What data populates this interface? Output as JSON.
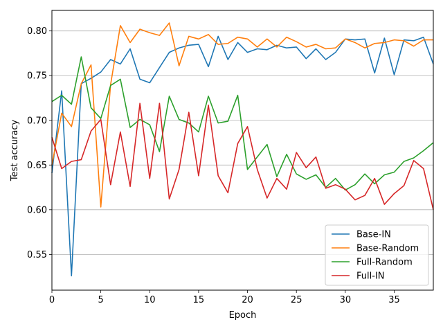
{
  "chart_data": {
    "type": "line",
    "title": "",
    "xlabel": "Epoch",
    "ylabel": "Test accuracy",
    "xlim": [
      0,
      39
    ],
    "ylim": [
      0.51,
      0.823
    ],
    "xticks": [
      0,
      5,
      10,
      15,
      20,
      25,
      30,
      35
    ],
    "yticks": [
      0.55,
      0.6,
      0.65,
      0.7,
      0.75,
      0.8
    ],
    "xtick_labels": [
      "0",
      "5",
      "10",
      "15",
      "20",
      "25",
      "30",
      "35"
    ],
    "ytick_labels": [
      "0.55",
      "0.60",
      "0.65",
      "0.70",
      "0.75",
      "0.80"
    ],
    "grid": "horizontal",
    "legend_position": "lower-right",
    "x": [
      0,
      1,
      2,
      3,
      4,
      5,
      6,
      7,
      8,
      9,
      10,
      11,
      12,
      13,
      14,
      15,
      16,
      17,
      18,
      19,
      20,
      21,
      22,
      23,
      24,
      25,
      26,
      27,
      28,
      29,
      30,
      31,
      32,
      33,
      34,
      35,
      36,
      37,
      38,
      39
    ],
    "series": [
      {
        "name": "Base-IN",
        "color": "#1f77b4",
        "values": [
          0.641,
          0.733,
          0.526,
          0.741,
          0.747,
          0.754,
          0.768,
          0.763,
          0.78,
          0.746,
          0.742,
          0.759,
          0.776,
          0.781,
          0.784,
          0.785,
          0.76,
          0.794,
          0.768,
          0.787,
          0.776,
          0.78,
          0.779,
          0.784,
          0.781,
          0.782,
          0.769,
          0.78,
          0.768,
          0.776,
          0.791,
          0.79,
          0.791,
          0.753,
          0.792,
          0.751,
          0.79,
          0.789,
          0.793,
          0.763
        ]
      },
      {
        "name": "Base-Random",
        "color": "#ff7f0e",
        "values": [
          0.65,
          0.708,
          0.693,
          0.741,
          0.762,
          0.603,
          0.74,
          0.806,
          0.787,
          0.802,
          0.798,
          0.795,
          0.809,
          0.761,
          0.794,
          0.791,
          0.796,
          0.785,
          0.786,
          0.793,
          0.791,
          0.782,
          0.791,
          0.782,
          0.793,
          0.788,
          0.782,
          0.785,
          0.78,
          0.781,
          0.791,
          0.787,
          0.781,
          0.786,
          0.787,
          0.79,
          0.789,
          0.783,
          0.79,
          0.79
        ]
      },
      {
        "name": "Full-Random",
        "color": "#2ca02c",
        "values": [
          0.721,
          0.728,
          0.718,
          0.771,
          0.714,
          0.702,
          0.739,
          0.746,
          0.692,
          0.701,
          0.695,
          0.665,
          0.727,
          0.701,
          0.697,
          0.687,
          0.727,
          0.697,
          0.699,
          0.728,
          0.645,
          0.659,
          0.673,
          0.637,
          0.662,
          0.64,
          0.634,
          0.639,
          0.625,
          0.635,
          0.622,
          0.628,
          0.64,
          0.629,
          0.639,
          0.642,
          0.654,
          0.658,
          0.666,
          0.675
        ]
      },
      {
        "name": "Full-IN",
        "color": "#d62728",
        "values": [
          0.681,
          0.646,
          0.654,
          0.656,
          0.688,
          0.701,
          0.628,
          0.687,
          0.626,
          0.719,
          0.635,
          0.719,
          0.612,
          0.645,
          0.709,
          0.638,
          0.717,
          0.638,
          0.619,
          0.674,
          0.693,
          0.645,
          0.613,
          0.635,
          0.623,
          0.664,
          0.647,
          0.659,
          0.624,
          0.628,
          0.623,
          0.611,
          0.616,
          0.635,
          0.606,
          0.618,
          0.627,
          0.655,
          0.646,
          0.6
        ]
      }
    ]
  }
}
